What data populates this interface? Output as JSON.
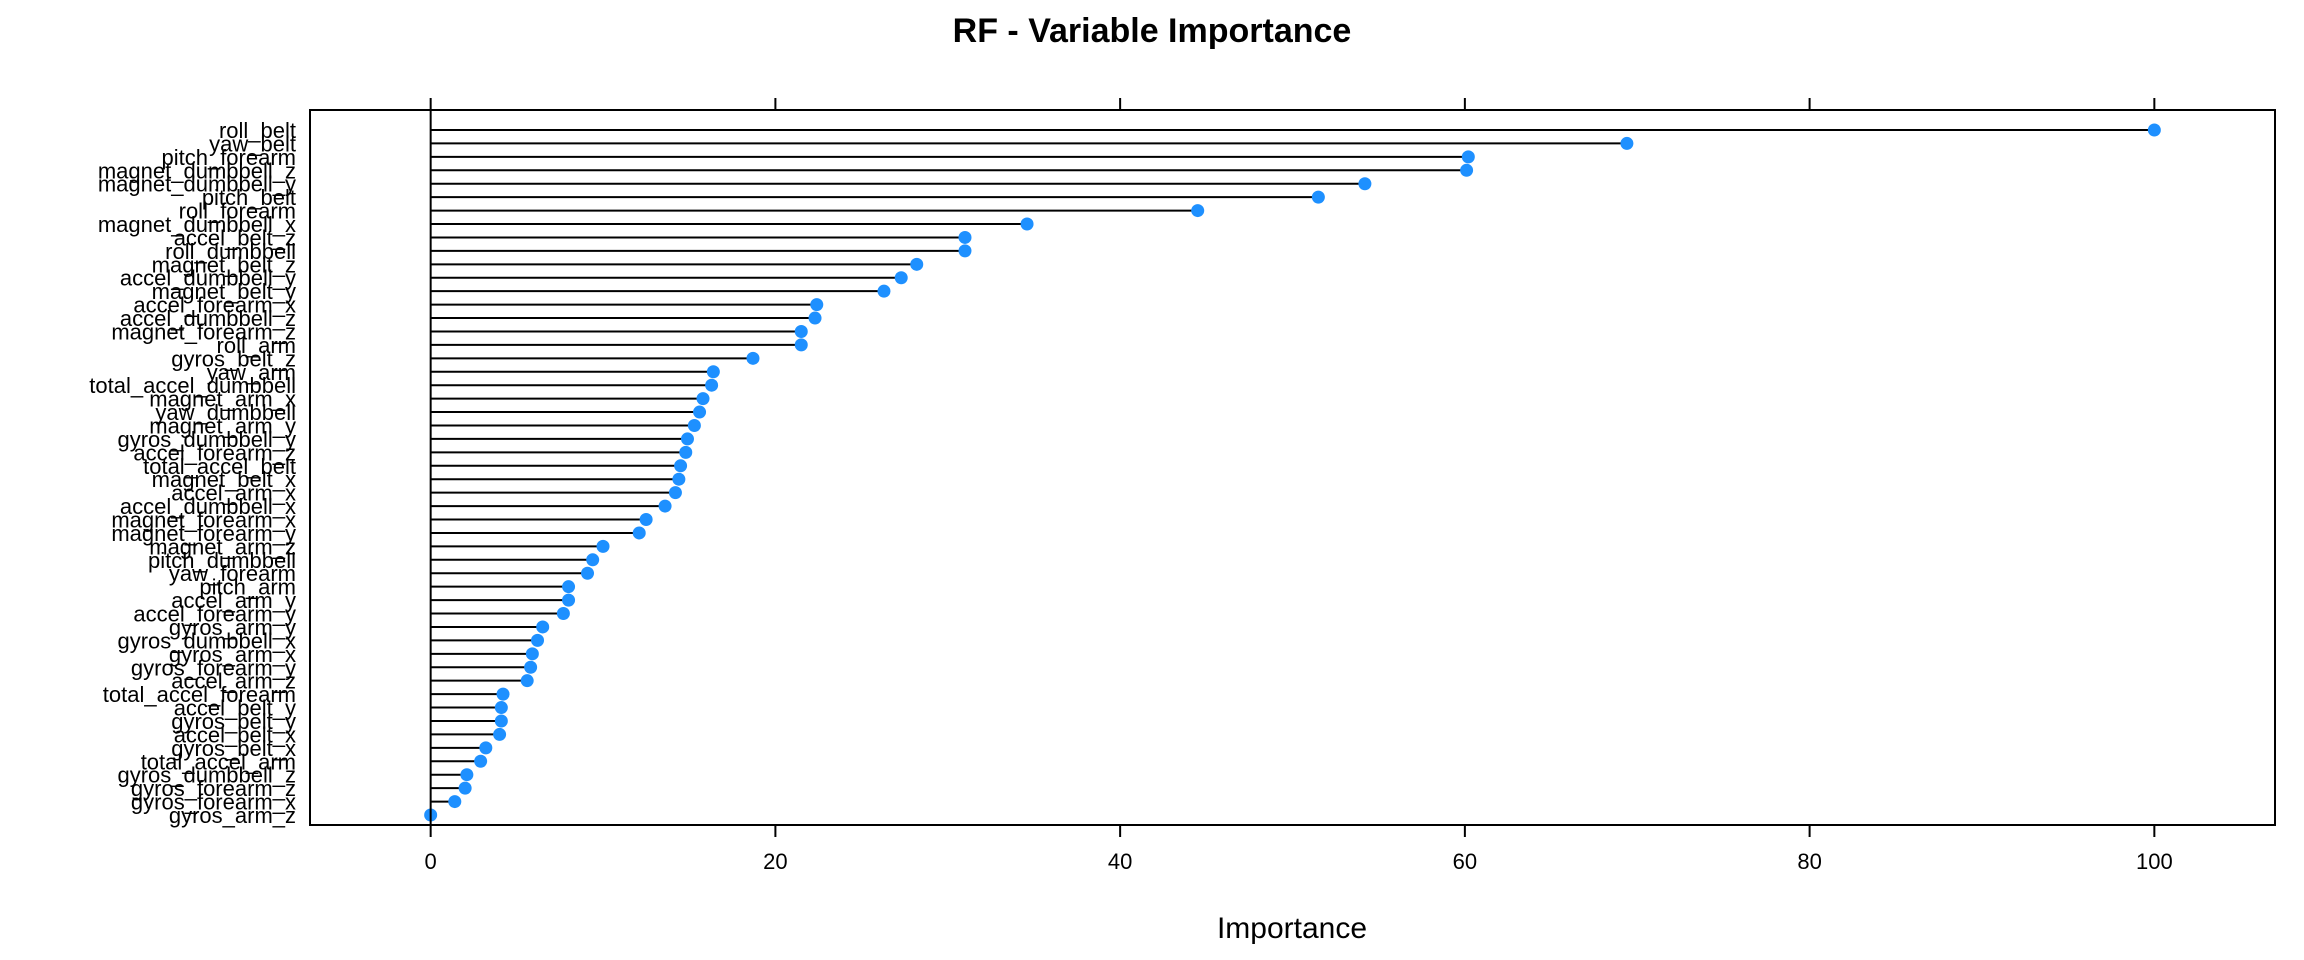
{
  "chart_data": {
    "type": "lollipop",
    "title": "RF - Variable Importance",
    "xlabel": "Importance",
    "ylabel": "",
    "xlim": [
      -7,
      107
    ],
    "xticks": [
      0,
      20,
      40,
      60,
      80,
      100
    ],
    "grid": false,
    "point_color": "#1e90ff",
    "categories": [
      "roll_belt",
      "yaw_belt",
      "pitch_forearm",
      "magnet_dumbbell_z",
      "magnet_dumbbell_y",
      "pitch_belt",
      "roll_forearm",
      "magnet_dumbbell_x",
      "accel_belt_z",
      "roll_dumbbell",
      "magnet_belt_z",
      "accel_dumbbell_y",
      "magnet_belt_y",
      "accel_forearm_x",
      "accel_dumbbell_z",
      "magnet_forearm_z",
      "roll_arm",
      "gyros_belt_z",
      "yaw_arm",
      "total_accel_dumbbell",
      "magnet_arm_x",
      "yaw_dumbbell",
      "magnet_arm_y",
      "gyros_dumbbell_y",
      "accel_forearm_z",
      "total_accel_belt",
      "magnet_belt_x",
      "accel_arm_x",
      "accel_dumbbell_x",
      "magnet_forearm_x",
      "magnet_forearm_y",
      "magnet_arm_z",
      "pitch_dumbbell",
      "yaw_forearm",
      "pitch_arm",
      "accel_arm_y",
      "accel_forearm_y",
      "gyros_arm_y",
      "gyros_dumbbell_x",
      "gyros_arm_x",
      "gyros_forearm_y",
      "accel_arm_z",
      "total_accel_forearm",
      "accel_belt_y",
      "gyros_belt_y",
      "accel_belt_x",
      "gyros_belt_x",
      "total_accel_arm",
      "gyros_dumbbell_z",
      "gyros_forearm_z",
      "gyros_forearm_x",
      "gyros_arm_z"
    ],
    "values": [
      100,
      69.4,
      60.2,
      60.1,
      54.2,
      51.5,
      44.5,
      34.6,
      31.0,
      31.0,
      28.2,
      27.3,
      26.3,
      22.4,
      22.3,
      21.5,
      21.5,
      18.7,
      16.4,
      16.3,
      15.8,
      15.6,
      15.3,
      14.9,
      14.8,
      14.5,
      14.4,
      14.2,
      13.6,
      12.5,
      12.1,
      10.0,
      9.4,
      9.1,
      8.0,
      8.0,
      7.7,
      6.5,
      6.2,
      5.9,
      5.8,
      5.6,
      4.2,
      4.1,
      4.1,
      4.0,
      3.2,
      2.9,
      2.1,
      2.0,
      1.4,
      0.0
    ]
  }
}
